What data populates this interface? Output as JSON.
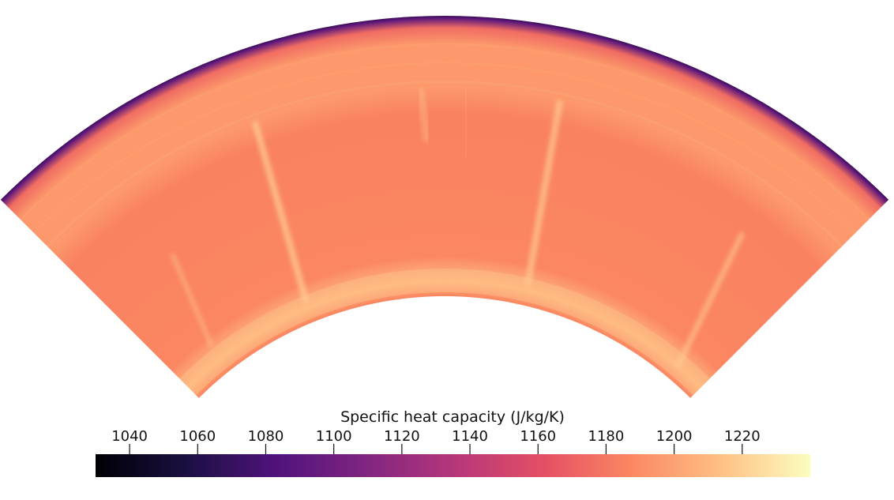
{
  "chart_data": {
    "type": "heatmap",
    "field": "specific heat capacity",
    "colorbar": {
      "title": "Specific heat capacity (J/kg/K)",
      "colormap": "magma",
      "range": [
        1030,
        1240
      ],
      "ticks": [
        1040,
        1060,
        1080,
        1100,
        1120,
        1140,
        1160,
        1180,
        1200,
        1220
      ],
      "tick_labels": [
        "1040",
        "1060",
        "1080",
        "1100",
        "1120",
        "1140",
        "1160",
        "1180",
        "1200",
        "1220"
      ]
    },
    "domain": {
      "shape": "annular sector (spherical shell slice)",
      "opening_angle_deg": 90
    },
    "value_summary": {
      "outer_boundary_layer": 1030,
      "upper_layers": 1195,
      "interior_bulk": 1187,
      "plume_streaks": 1220,
      "lower_boundary_layer": 1212
    }
  },
  "colors": {
    "background": "#ffffff",
    "text": "#111111"
  }
}
